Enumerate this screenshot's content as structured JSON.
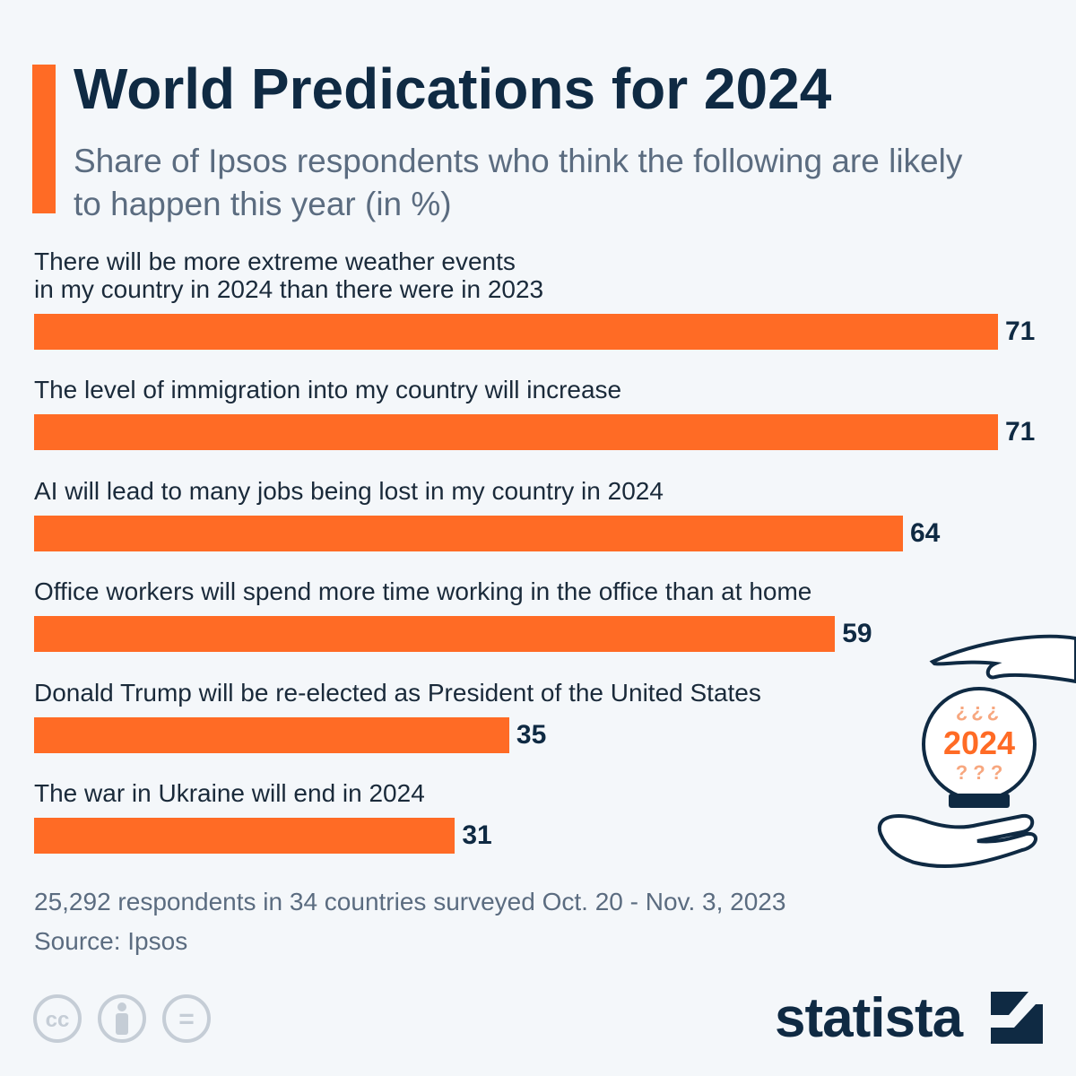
{
  "chart_data": {
    "type": "bar",
    "title": "World Predications for 2024",
    "subtitle": "Share of Ipsos respondents who think the following are likely to happen this year (in %)",
    "categories": [
      "There will be more extreme weather events\nin my country in 2024 than there were in 2023",
      "The level of immigration into my country will increase",
      "AI will lead to many jobs being lost in my country in 2024",
      "Office workers will spend more time working in the office than at home",
      "Donald Trump will be re-elected as President of the United States",
      "The war in Ukraine will end in 2024"
    ],
    "values": [
      71,
      71,
      64,
      59,
      35,
      31
    ],
    "color": "#ff6b25",
    "note": "25,292 respondents in 34 countries surveyed Oct. 20 - Nov. 3, 2023",
    "source": "Source: Ipsos"
  },
  "illustration": {
    "top_marks": "¿¿¿",
    "year": "2024",
    "bottom_marks": "? ? ?"
  },
  "footer": {
    "license_icons": [
      "cc",
      "="
    ],
    "brand": "statista"
  }
}
